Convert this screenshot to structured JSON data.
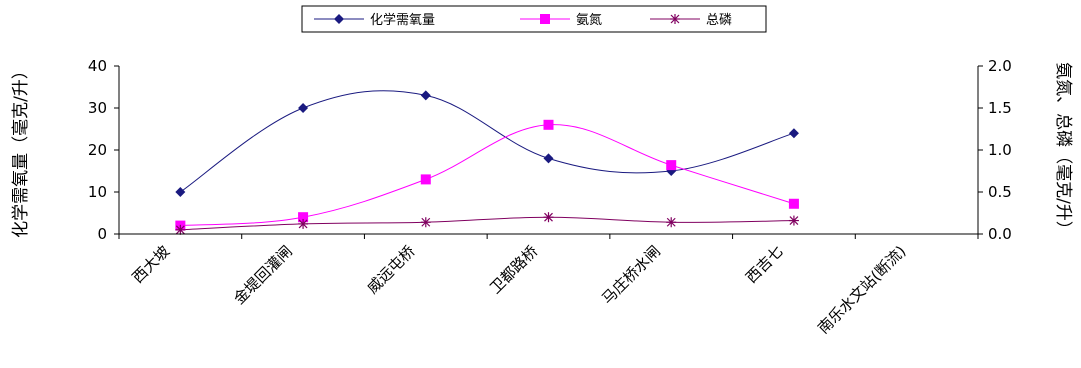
{
  "chart_data": {
    "type": "line",
    "categories": [
      "西大坡",
      "金堤回灌闸",
      "威远屯桥",
      "卫都路桥",
      "马庄桥水闸",
      "西吉七",
      "南乐水文站(断流)"
    ],
    "series": [
      {
        "name": "化学需氧量",
        "axis": "left",
        "color": "#1a1a80",
        "marker": "diamond",
        "values": [
          10,
          30,
          33,
          18,
          15,
          24,
          null
        ]
      },
      {
        "name": "氨氮",
        "axis": "right",
        "color": "#ff00ff",
        "marker": "square",
        "values": [
          0.1,
          0.2,
          0.65,
          1.3,
          0.82,
          0.36,
          null
        ]
      },
      {
        "name": "总磷",
        "axis": "right",
        "color": "#800060",
        "marker": "star",
        "values": [
          0.05,
          0.12,
          0.14,
          0.2,
          0.14,
          0.16,
          null
        ]
      }
    ],
    "ylabel_left": "化学需氧量（毫克/升）",
    "ylabel_right": "氨氮、总磷（毫克/升）",
    "ylim_left": [
      0,
      40
    ],
    "ylim_right": [
      0,
      2.0
    ],
    "yticks_left": [
      "0",
      "10",
      "20",
      "30",
      "40"
    ],
    "yticks_right": [
      "0.0",
      "0.5",
      "1.0",
      "1.5",
      "2.0"
    ],
    "grid": false,
    "legend_position": "top-center",
    "smooth": true
  }
}
